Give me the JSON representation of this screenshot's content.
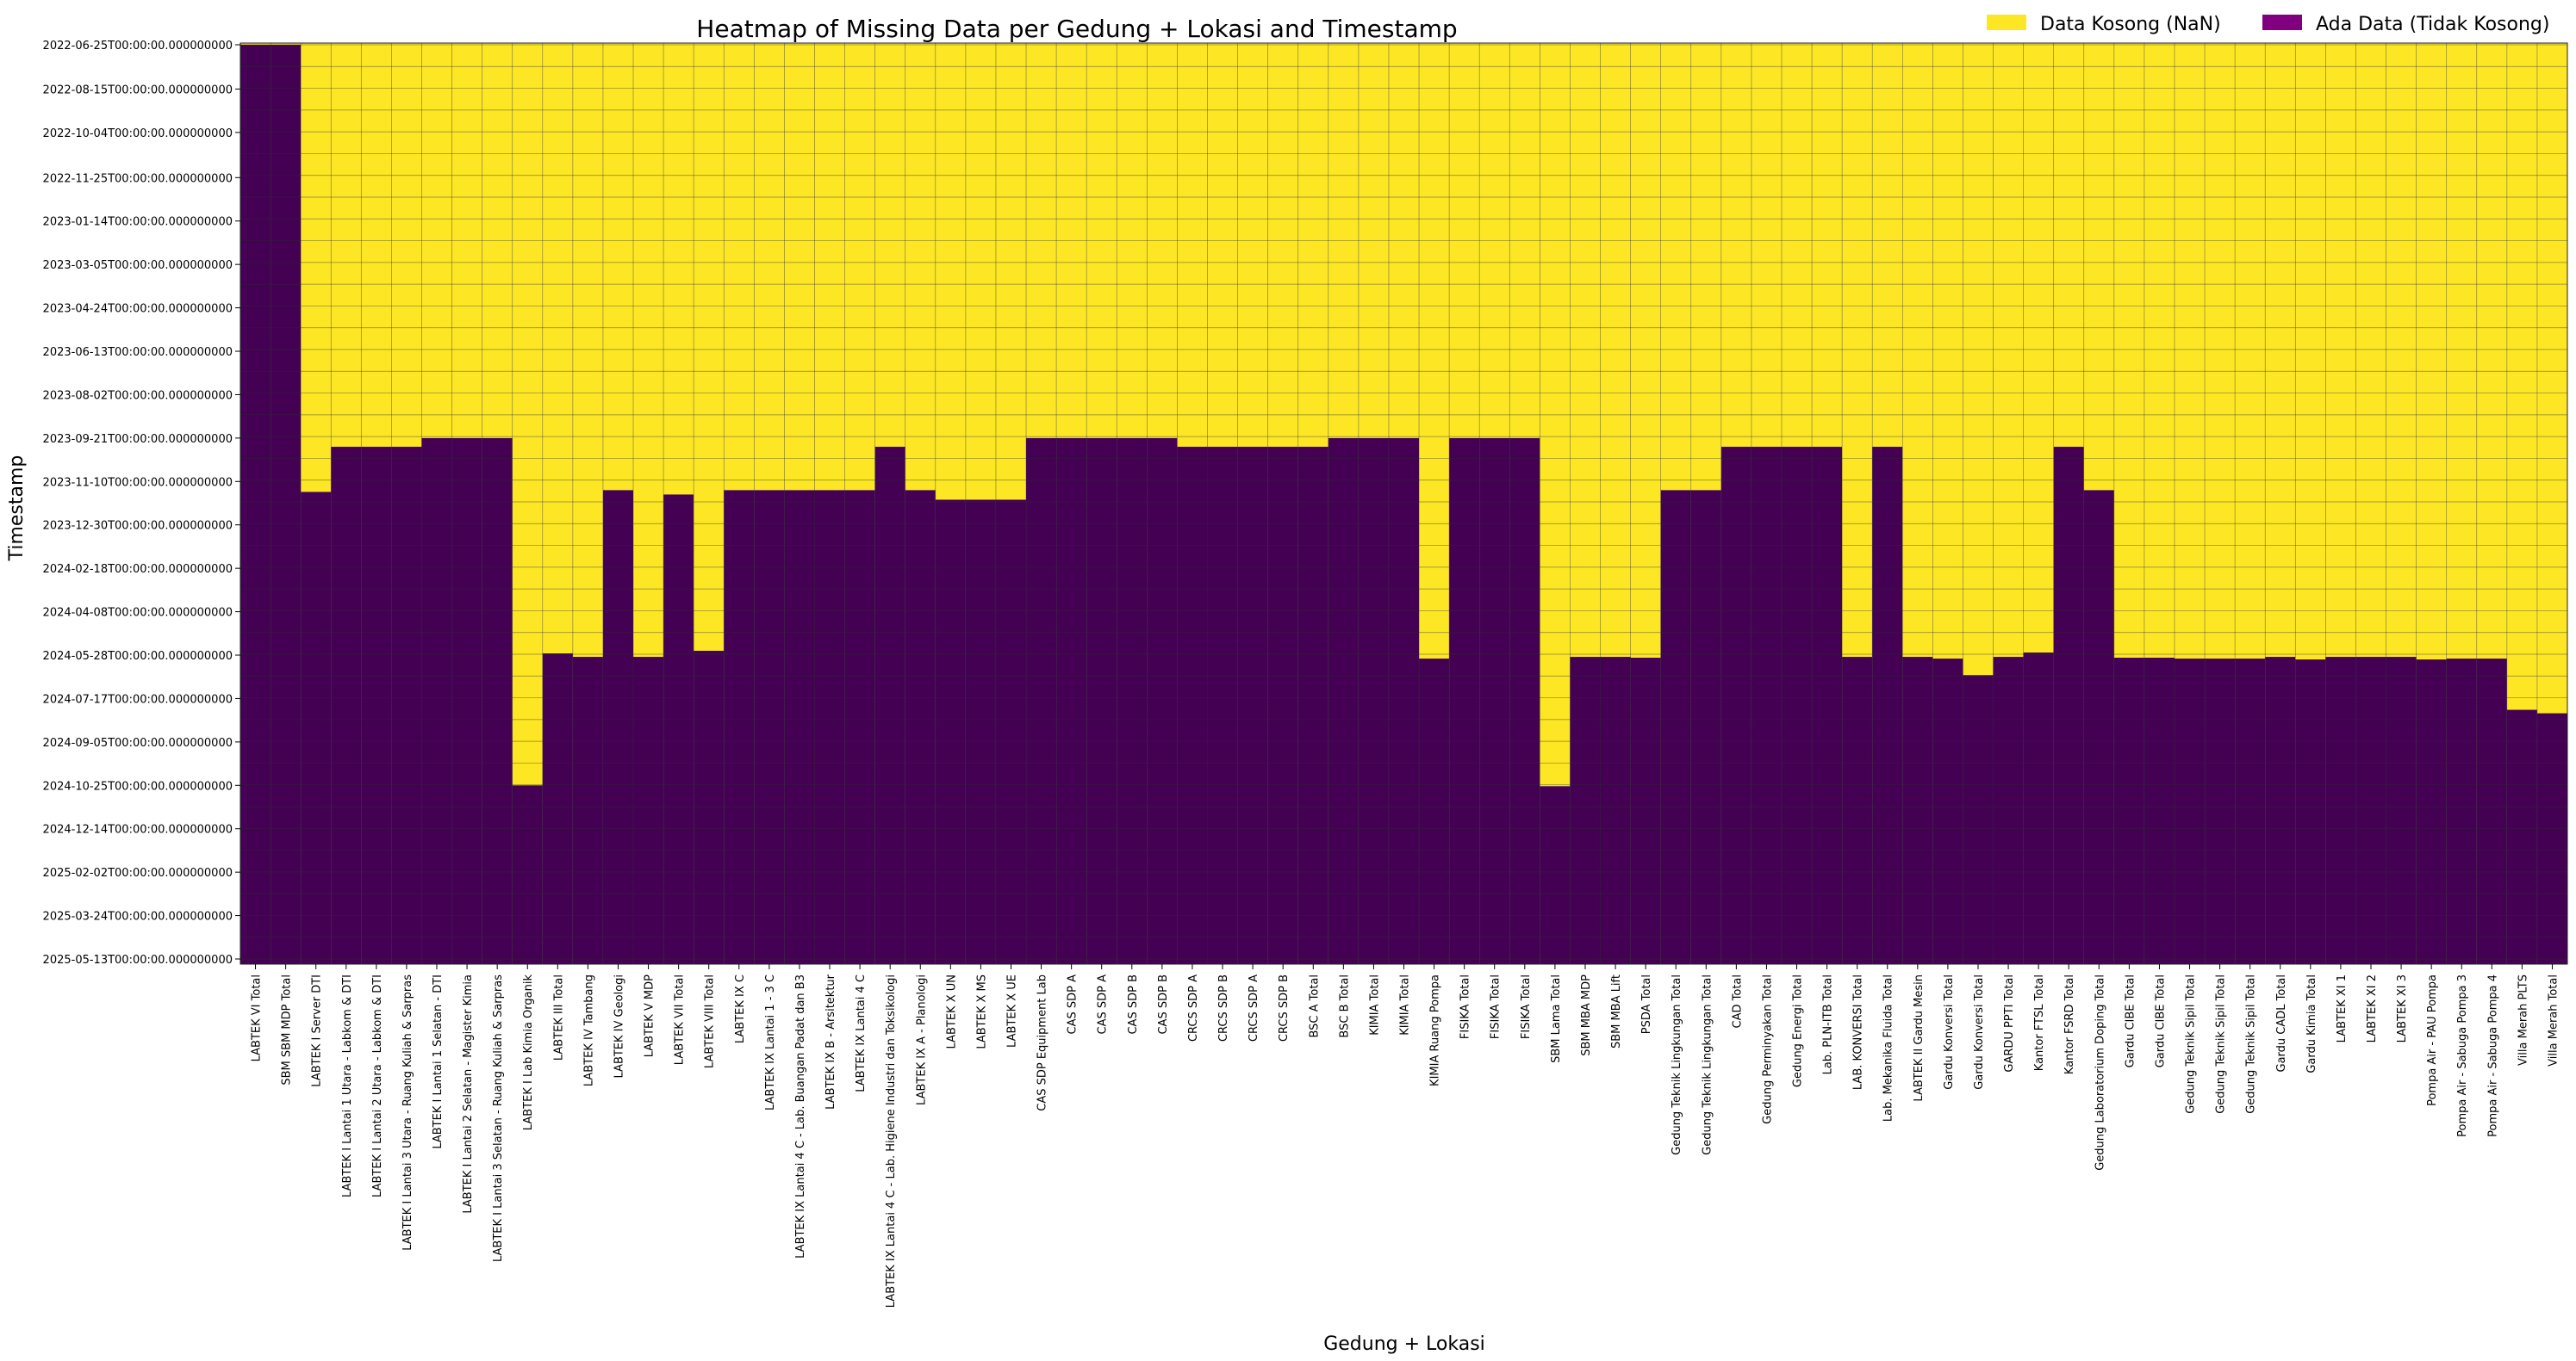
{
  "chart_data": {
    "type": "heatmap",
    "title": "Heatmap of Missing Data per Gedung + Lokasi and Timestamp",
    "xlabel": "Gedung + Lokasi",
    "ylabel": "Timestamp",
    "legend": {
      "placement": "top-right",
      "entries": [
        {
          "label": "Data Kosong (NaN)",
          "color": "#fde725"
        },
        {
          "label": "Ada Data (Tidak Kosong)",
          "color": "#800080"
        }
      ]
    },
    "colors": {
      "missing": "#fde725",
      "present": "#440154",
      "grid": "#2b2b2b"
    },
    "y_ticks": [
      "2022-06-25T00:00:00.000000000",
      "2022-08-15T00:00:00.000000000",
      "2022-10-04T00:00:00.000000000",
      "2022-11-25T00:00:00.000000000",
      "2023-01-14T00:00:00.000000000",
      "2023-03-05T00:00:00.000000000",
      "2023-04-24T00:00:00.000000000",
      "2023-06-13T00:00:00.000000000",
      "2023-08-02T00:00:00.000000000",
      "2023-09-21T00:00:00.000000000",
      "2023-11-10T00:00:00.000000000",
      "2023-12-30T00:00:00.000000000",
      "2024-02-18T00:00:00.000000000",
      "2024-04-08T00:00:00.000000000",
      "2024-05-28T00:00:00.000000000",
      "2024-07-17T00:00:00.000000000",
      "2024-09-05T00:00:00.000000000",
      "2024-10-25T00:00:00.000000000",
      "2024-12-14T00:00:00.000000000",
      "2025-02-02T00:00:00.000000000",
      "2025-03-24T00:00:00.000000000",
      "2025-05-13T00:00:00.000000000"
    ],
    "columns": [
      {
        "name": "LABTEK VI Total",
        "data_from": "2022-06-25T00:00:00.000000000"
      },
      {
        "name": "SBM SBM MDP Total",
        "data_from": "2022-06-25T00:00:00.000000000"
      },
      {
        "name": "LABTEK I Server DTI",
        "data_from": "2023-11-22T00:00:00.000000000"
      },
      {
        "name": "LABTEK I Lantai 1 Utara - Labkom & DTI",
        "data_from": "2023-10-01T00:00:00.000000000"
      },
      {
        "name": "LABTEK I Lantai 2 Utara - Labkom & DTI",
        "data_from": "2023-10-01T00:00:00.000000000"
      },
      {
        "name": "LABTEK I Lantai 3 Utara - Ruang Kuliah & Sarpras",
        "data_from": "2023-10-01T00:00:00.000000000"
      },
      {
        "name": "LABTEK I Lantai 1 Selatan - DTI",
        "data_from": "2023-09-21T00:00:00.000000000"
      },
      {
        "name": "LABTEK I Lantai 2 Selatan - Magister Kimia",
        "data_from": "2023-09-21T00:00:00.000000000"
      },
      {
        "name": "LABTEK I Lantai 3 Selatan - Ruang Kuliah & Sarpras",
        "data_from": "2023-09-21T00:00:00.000000000"
      },
      {
        "name": "LABTEK I Lab Kimia Organik",
        "data_from": "2024-10-25T00:00:00.000000000"
      },
      {
        "name": "LABTEK III Total",
        "data_from": "2024-05-26T00:00:00.000000000"
      },
      {
        "name": "LABTEK IV Tambang",
        "data_from": "2024-05-30T00:00:00.000000000"
      },
      {
        "name": "LABTEK IV Geologi",
        "data_from": "2023-11-20T00:00:00.000000000"
      },
      {
        "name": "LABTEK V MDP",
        "data_from": "2024-05-30T00:00:00.000000000"
      },
      {
        "name": "LABTEK VII Total",
        "data_from": "2023-11-25T00:00:00.000000000"
      },
      {
        "name": "LABTEK VIII Total",
        "data_from": "2024-05-23T00:00:00.000000000"
      },
      {
        "name": "LABTEK IX C",
        "data_from": "2023-11-20T00:00:00.000000000"
      },
      {
        "name": "LABTEK IX Lantai 1 - 3 C",
        "data_from": "2023-11-20T00:00:00.000000000"
      },
      {
        "name": "LABTEK IX Lantai 4 C - Lab. Buangan Padat dan B3",
        "data_from": "2023-11-20T00:00:00.000000000"
      },
      {
        "name": "LABTEK IX B - Arsitektur",
        "data_from": "2023-11-20T00:00:00.000000000"
      },
      {
        "name": "LABTEK IX Lantai 4 C",
        "data_from": "2023-11-20T00:00:00.000000000"
      },
      {
        "name": "LABTEK IX Lantai 4 C - Lab. Higiene Industri dan Toksikologi",
        "data_from": "2023-10-01T00:00:00.000000000"
      },
      {
        "name": "LABTEK IX A - Planologi",
        "data_from": "2023-11-20T00:00:00.000000000"
      },
      {
        "name": "LABTEK X UN",
        "data_from": "2023-12-01T00:00:00.000000000"
      },
      {
        "name": "LABTEK X MS",
        "data_from": "2023-12-01T00:00:00.000000000"
      },
      {
        "name": "LABTEK X UE",
        "data_from": "2023-12-01T00:00:00.000000000"
      },
      {
        "name": "CAS SDP Equipment Lab",
        "data_from": "2023-09-21T00:00:00.000000000"
      },
      {
        "name": "CAS SDP A",
        "data_from": "2023-09-21T00:00:00.000000000"
      },
      {
        "name": "CAS SDP A",
        "data_from": "2023-09-21T00:00:00.000000000"
      },
      {
        "name": "CAS SDP B",
        "data_from": "2023-09-21T00:00:00.000000000"
      },
      {
        "name": "CAS SDP B",
        "data_from": "2023-09-21T00:00:00.000000000"
      },
      {
        "name": "CRCS SDP A",
        "data_from": "2023-10-01T00:00:00.000000000"
      },
      {
        "name": "CRCS SDP B",
        "data_from": "2023-10-01T00:00:00.000000000"
      },
      {
        "name": "CRCS SDP A",
        "data_from": "2023-10-01T00:00:00.000000000"
      },
      {
        "name": "CRCS SDP B",
        "data_from": "2023-10-01T00:00:00.000000000"
      },
      {
        "name": "BSC A Total",
        "data_from": "2023-10-01T00:00:00.000000000"
      },
      {
        "name": "BSC B Total",
        "data_from": "2023-09-21T00:00:00.000000000"
      },
      {
        "name": "KIMIA Total",
        "data_from": "2023-09-21T00:00:00.000000000"
      },
      {
        "name": "KIMIA Total",
        "data_from": "2023-09-21T00:00:00.000000000"
      },
      {
        "name": "KIMIA Ruang Pompa",
        "data_from": "2024-06-01T00:00:00.000000000"
      },
      {
        "name": "FISIKA Total",
        "data_from": "2023-09-21T00:00:00.000000000"
      },
      {
        "name": "FISIKA Total",
        "data_from": "2023-09-21T00:00:00.000000000"
      },
      {
        "name": "FISIKA Total",
        "data_from": "2023-09-21T00:00:00.000000000"
      },
      {
        "name": "SBM Lama Total",
        "data_from": "2024-10-26T00:00:00.000000000"
      },
      {
        "name": "SBM MBA MDP",
        "data_from": "2024-05-30T00:00:00.000000000"
      },
      {
        "name": "SBM MBA Lift",
        "data_from": "2024-05-30T00:00:00.000000000"
      },
      {
        "name": "PSDA Total",
        "data_from": "2024-05-31T00:00:00.000000000"
      },
      {
        "name": "Gedung Teknik Lingkungan Total",
        "data_from": "2023-11-20T00:00:00.000000000"
      },
      {
        "name": "Gedung Teknik Lingkungan Total",
        "data_from": "2023-11-20T00:00:00.000000000"
      },
      {
        "name": "CAD Total",
        "data_from": "2023-10-01T00:00:00.000000000"
      },
      {
        "name": "Gedung Perminyakan Total",
        "data_from": "2023-10-01T00:00:00.000000000"
      },
      {
        "name": "Gedung Energi Total",
        "data_from": "2023-10-01T00:00:00.000000000"
      },
      {
        "name": "Lab. PLN-ITB Total",
        "data_from": "2023-10-01T00:00:00.000000000"
      },
      {
        "name": "LAB. KONVERSI Total",
        "data_from": "2024-05-30T00:00:00.000000000"
      },
      {
        "name": "Lab. Mekanika Fluida Total",
        "data_from": "2023-10-01T00:00:00.000000000"
      },
      {
        "name": "LABTEK II Gardu Mesin",
        "data_from": "2024-05-30T00:00:00.000000000"
      },
      {
        "name": "Gardu Konversi Total",
        "data_from": "2024-06-01T00:00:00.000000000"
      },
      {
        "name": "Gardu Konversi Total",
        "data_from": "2024-06-20T00:00:00.000000000"
      },
      {
        "name": "GARDU PPTI Total",
        "data_from": "2024-05-30T00:00:00.000000000"
      },
      {
        "name": "Kantor FTSL Total",
        "data_from": "2024-05-25T00:00:00.000000000"
      },
      {
        "name": "Kantor FSRD Total",
        "data_from": "2023-10-01T00:00:00.000000000"
      },
      {
        "name": "Gedung Laboratorium Doping Total",
        "data_from": "2023-11-20T00:00:00.000000000"
      },
      {
        "name": "Gardu CIBE Total",
        "data_from": "2024-05-31T00:00:00.000000000"
      },
      {
        "name": "Gardu CIBE Total",
        "data_from": "2024-05-31T00:00:00.000000000"
      },
      {
        "name": "Gedung Teknik Sipil Total",
        "data_from": "2024-06-01T00:00:00.000000000"
      },
      {
        "name": "Gedung Teknik Sipil Total",
        "data_from": "2024-06-01T00:00:00.000000000"
      },
      {
        "name": "Gedung Teknik Sipil Total",
        "data_from": "2024-06-01T00:00:00.000000000"
      },
      {
        "name": "Gardu CADL Total",
        "data_from": "2024-05-30T00:00:00.000000000"
      },
      {
        "name": "Gardu Kimia Total",
        "data_from": "2024-06-02T00:00:00.000000000"
      },
      {
        "name": "LABTEK XI 1",
        "data_from": "2024-05-30T00:00:00.000000000"
      },
      {
        "name": "LABTEK XI 2",
        "data_from": "2024-05-30T00:00:00.000000000"
      },
      {
        "name": "LABTEK XI 3",
        "data_from": "2024-05-30T00:00:00.000000000"
      },
      {
        "name": "Pompa Air - PAU Pompa",
        "data_from": "2024-06-02T00:00:00.000000000"
      },
      {
        "name": "Pompa Air - Sabuga Pompa 3",
        "data_from": "2024-06-01T00:00:00.000000000"
      },
      {
        "name": "Pompa Air - Sabuga Pompa 4",
        "data_from": "2024-06-01T00:00:00.000000000"
      },
      {
        "name": "Villa Merah PLTS",
        "data_from": "2024-07-30T00:00:00.000000000"
      },
      {
        "name": "Villa Merah Total",
        "data_from": "2024-08-03T00:00:00.000000000"
      }
    ]
  }
}
